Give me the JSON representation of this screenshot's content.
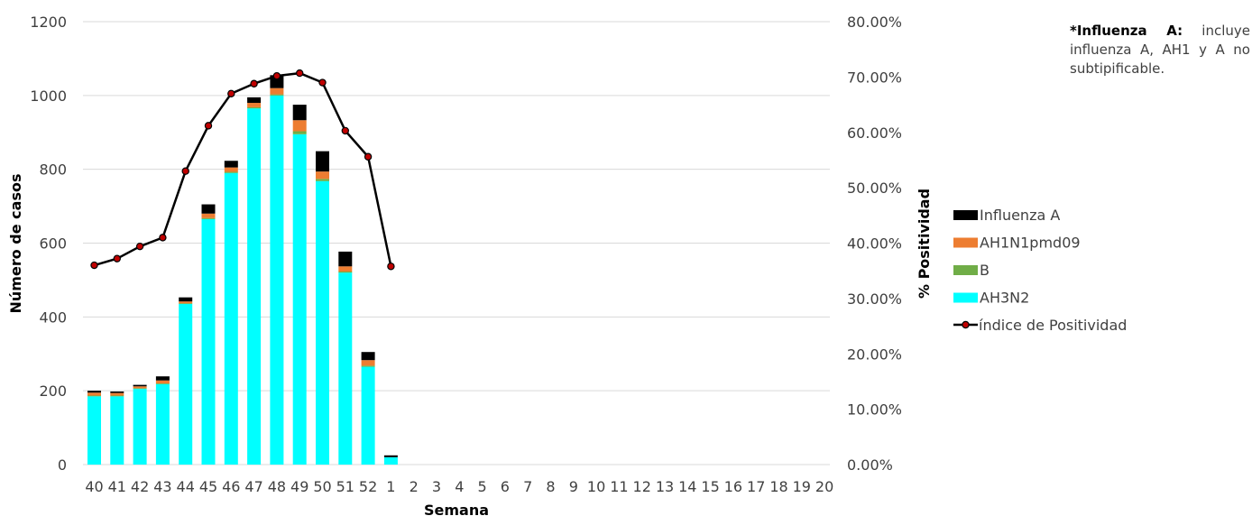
{
  "chart_data": {
    "type": "bar",
    "stacked": true,
    "categories": [
      "40",
      "41",
      "42",
      "43",
      "44",
      "45",
      "46",
      "47",
      "48",
      "49",
      "50",
      "51",
      "52",
      "1",
      "2",
      "3",
      "4",
      "5",
      "6",
      "7",
      "8",
      "9",
      "10",
      "11",
      "12",
      "13",
      "14",
      "15",
      "16",
      "17",
      "18",
      "19",
      "20"
    ],
    "xlabel": "Semana",
    "ylabel": "Número de casos",
    "y2label": "% Positividad",
    "ylim": [
      0,
      1200
    ],
    "y2lim": [
      0,
      80
    ],
    "yticks": [
      "0",
      "200",
      "400",
      "600",
      "800",
      "1000",
      "1200"
    ],
    "y2ticks": [
      "0.00%",
      "10.00%",
      "20.00%",
      "30.00%",
      "40.00%",
      "50.00%",
      "60.00%",
      "70.00%",
      "80.00%"
    ],
    "grid": true,
    "legend_position": "right",
    "series": [
      {
        "name": "AH3N2",
        "color": "#00FFFF",
        "values": [
          185,
          185,
          205,
          218,
          435,
          665,
          790,
          965,
          1000,
          895,
          768,
          520,
          265,
          20,
          null,
          null,
          null,
          null,
          null,
          null,
          null,
          null,
          null,
          null,
          null,
          null,
          null,
          null,
          null,
          null,
          null,
          null,
          null
        ]
      },
      {
        "name": "B",
        "color": "#70AD47",
        "values": [
          2,
          2,
          2,
          2,
          2,
          3,
          3,
          3,
          3,
          8,
          6,
          3,
          3,
          0,
          null,
          null,
          null,
          null,
          null,
          null,
          null,
          null,
          null,
          null,
          null,
          null,
          null,
          null,
          null,
          null,
          null,
          null,
          null
        ]
      },
      {
        "name": "AH1N1pmd09",
        "color": "#ED7D31",
        "values": [
          8,
          7,
          5,
          8,
          5,
          12,
          12,
          12,
          17,
          30,
          20,
          14,
          15,
          0,
          null,
          null,
          null,
          null,
          null,
          null,
          null,
          null,
          null,
          null,
          null,
          null,
          null,
          null,
          null,
          null,
          null,
          null,
          null
        ]
      },
      {
        "name": "Influenza A",
        "color": "#000000",
        "values": [
          5,
          4,
          4,
          11,
          11,
          25,
          18,
          15,
          35,
          42,
          55,
          40,
          22,
          5,
          null,
          null,
          null,
          null,
          null,
          null,
          null,
          null,
          null,
          null,
          null,
          null,
          null,
          null,
          null,
          null,
          null,
          null,
          null
        ]
      },
      {
        "name": "índice de Positividad",
        "type": "line",
        "axis": "right",
        "color": "#000000",
        "marker_color": "#C00000",
        "values": [
          36.0,
          37.2,
          39.4,
          41.0,
          53.0,
          61.2,
          67.0,
          68.8,
          70.2,
          70.7,
          69.0,
          60.3,
          55.6,
          35.8,
          null,
          null,
          null,
          null,
          null,
          null,
          null,
          null,
          null,
          null,
          null,
          null,
          null,
          null,
          null,
          null,
          null,
          null,
          null
        ]
      }
    ],
    "legend": [
      "Influenza A",
      "AH1N1pmd09",
      "B",
      "AH3N2",
      "índice de Positividad"
    ]
  },
  "note": {
    "bold": "*Influenza A:",
    "text": " incluye influenza A, AH1 y A no subtipificable."
  }
}
